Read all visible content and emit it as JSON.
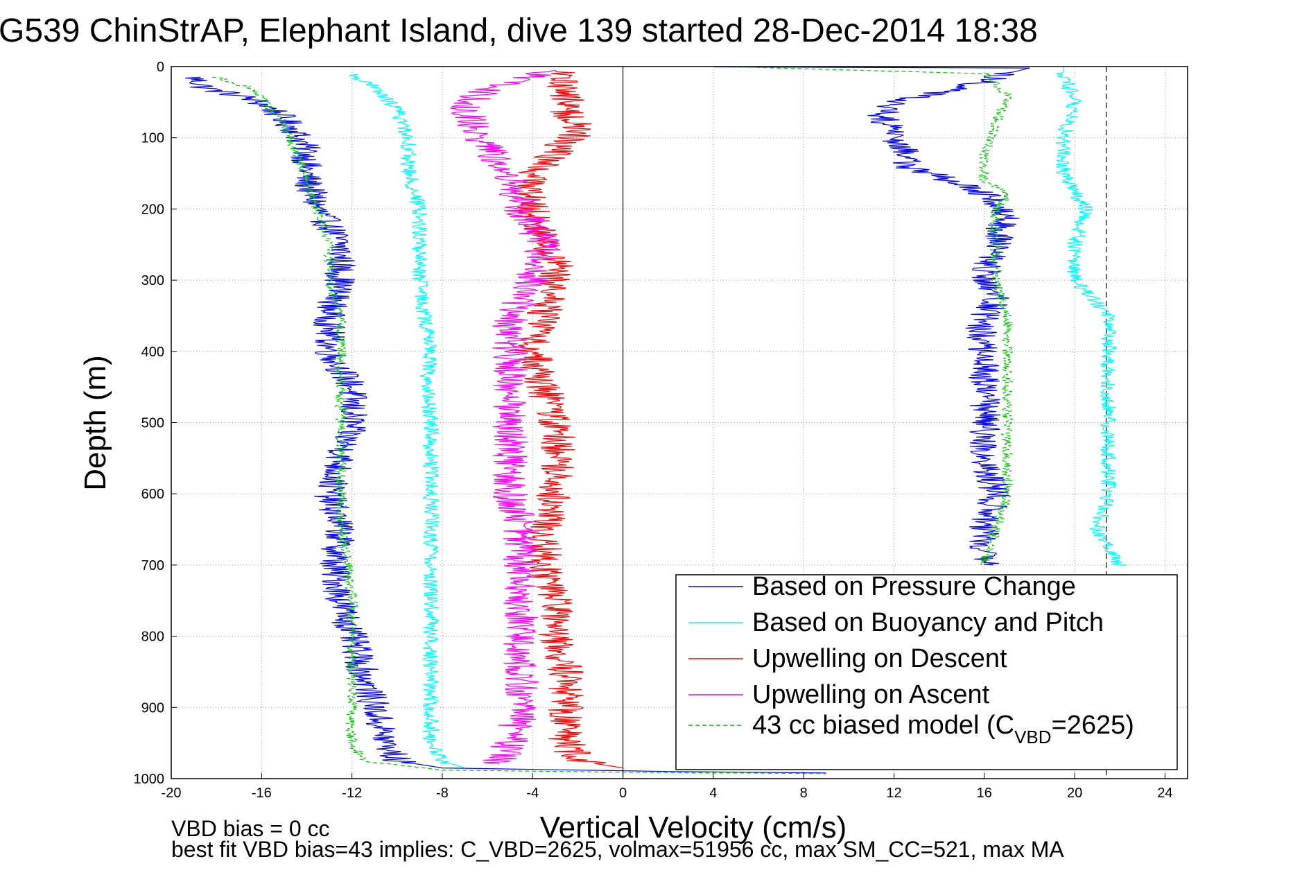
{
  "chart_data": {
    "type": "line",
    "title": "G539 ChinStrAP, Elephant Island, dive 139 started 28-Dec-2014 18:38",
    "xlabel": "Vertical Velocity (cm/s)",
    "ylabel": "Depth (m)",
    "xlim": [
      -20,
      25
    ],
    "ylim": [
      0,
      1000
    ],
    "y_reversed": true,
    "grid": "dotted",
    "xticks": [
      -20,
      -16,
      -12,
      -8,
      -4,
      0,
      4,
      8,
      12,
      16,
      20,
      24
    ],
    "yticks": [
      0,
      100,
      200,
      300,
      400,
      500,
      600,
      700,
      800,
      900,
      1000
    ],
    "reference_lines": [
      {
        "x": 0,
        "style": "solid",
        "color": "#000000"
      },
      {
        "x": 21.4,
        "style": "dashed",
        "color": "#000000"
      }
    ],
    "legend": {
      "placement": "bottom-right",
      "entries": [
        {
          "label": "Based on Pressure Change",
          "color": "#0000ff",
          "dash": "solid"
        },
        {
          "label": "Based on Buoyancy and Pitch",
          "color": "#00ffff",
          "dash": "solid"
        },
        {
          "label": "Upwelling on Descent",
          "color": "#ff0000",
          "dash": "solid"
        },
        {
          "label": "Upwelling on Ascent",
          "color": "#ff00ff",
          "dash": "solid"
        },
        {
          "label_main": "43 cc biased model (C",
          "label_sub": "VBD",
          "label_tail": "=2625)",
          "color": "#00cc00",
          "dash": "dashed"
        }
      ]
    },
    "series": [
      {
        "color": "#0000ff",
        "dash": "solid",
        "noise": 0.7,
        "role": "descent",
        "points": [
          [
            -19.0,
            15
          ],
          [
            -18.5,
            30
          ],
          [
            -16.5,
            45
          ],
          [
            -15.5,
            60
          ],
          [
            -14.5,
            90
          ],
          [
            -14.0,
            120
          ],
          [
            -14.0,
            160
          ],
          [
            -13.5,
            200
          ],
          [
            -12.5,
            250
          ],
          [
            -12.5,
            300
          ],
          [
            -13.0,
            350
          ],
          [
            -13.0,
            400
          ],
          [
            -12.0,
            450
          ],
          [
            -12.0,
            500
          ],
          [
            -12.5,
            550
          ],
          [
            -13.0,
            600
          ],
          [
            -12.5,
            650
          ],
          [
            -12.8,
            700
          ],
          [
            -12.5,
            750
          ],
          [
            -12.0,
            800
          ],
          [
            -11.5,
            850
          ],
          [
            -11.0,
            900
          ],
          [
            -10.5,
            950
          ],
          [
            -10.0,
            975
          ],
          [
            -8.0,
            985
          ],
          [
            2.0,
            990
          ],
          [
            9.0,
            992
          ]
        ]
      },
      {
        "color": "#0000ff",
        "dash": "solid",
        "noise": 0.7,
        "role": "ascent",
        "points": [
          [
            16.0,
            700
          ],
          [
            16.0,
            650
          ],
          [
            16.5,
            600
          ],
          [
            16.0,
            550
          ],
          [
            16.0,
            500
          ],
          [
            16.0,
            450
          ],
          [
            16.0,
            400
          ],
          [
            15.8,
            360
          ],
          [
            16.5,
            330
          ],
          [
            16.0,
            300
          ],
          [
            16.5,
            250
          ],
          [
            17.0,
            200
          ],
          [
            16.0,
            180
          ],
          [
            14.5,
            160
          ],
          [
            12.5,
            140
          ],
          [
            12.5,
            120
          ],
          [
            12.0,
            100
          ],
          [
            11.5,
            70
          ],
          [
            12.0,
            50
          ],
          [
            15.0,
            30
          ],
          [
            17.0,
            10
          ],
          [
            18.0,
            2
          ],
          [
            4.0,
            0.5
          ]
        ]
      },
      {
        "color": "#00ffff",
        "dash": "solid",
        "noise": 0.35,
        "role": "descent",
        "points": [
          [
            -12.0,
            10
          ],
          [
            -11.0,
            30
          ],
          [
            -10.0,
            60
          ],
          [
            -9.5,
            100
          ],
          [
            -9.5,
            150
          ],
          [
            -9.0,
            200
          ],
          [
            -9.0,
            250
          ],
          [
            -9.0,
            300
          ],
          [
            -8.8,
            350
          ],
          [
            -8.5,
            400
          ],
          [
            -8.7,
            450
          ],
          [
            -8.5,
            500
          ],
          [
            -8.5,
            550
          ],
          [
            -8.5,
            600
          ],
          [
            -8.5,
            650
          ],
          [
            -8.5,
            700
          ],
          [
            -8.5,
            750
          ],
          [
            -8.5,
            800
          ],
          [
            -8.5,
            850
          ],
          [
            -8.5,
            900
          ],
          [
            -8.5,
            950
          ],
          [
            -8.0,
            975
          ],
          [
            -7.0,
            985
          ]
        ]
      },
      {
        "color": "#00ffff",
        "dash": "solid",
        "noise": 0.35,
        "role": "ascent",
        "points": [
          [
            22.0,
            700
          ],
          [
            21.0,
            650
          ],
          [
            21.5,
            600
          ],
          [
            21.5,
            550
          ],
          [
            21.5,
            500
          ],
          [
            21.5,
            450
          ],
          [
            21.5,
            400
          ],
          [
            21.5,
            350
          ],
          [
            20.0,
            300
          ],
          [
            20.0,
            250
          ],
          [
            20.5,
            200
          ],
          [
            19.5,
            150
          ],
          [
            19.5,
            100
          ],
          [
            20.0,
            50
          ],
          [
            19.5,
            10
          ],
          [
            19.5,
            0
          ]
        ]
      },
      {
        "color": "#ff0000",
        "dash": "solid",
        "noise": 0.8,
        "role": "descent",
        "points": [
          [
            -3.0,
            5
          ],
          [
            -2.5,
            30
          ],
          [
            -2.5,
            60
          ],
          [
            -2.0,
            90
          ],
          [
            -3.0,
            120
          ],
          [
            -4.0,
            150
          ],
          [
            -4.0,
            180
          ],
          [
            -4.0,
            200
          ],
          [
            -3.5,
            250
          ],
          [
            -3.0,
            280
          ],
          [
            -3.0,
            300
          ],
          [
            -3.5,
            350
          ],
          [
            -4.0,
            400
          ],
          [
            -3.5,
            450
          ],
          [
            -3.0,
            500
          ],
          [
            -2.8,
            550
          ],
          [
            -3.0,
            600
          ],
          [
            -3.5,
            650
          ],
          [
            -3.5,
            700
          ],
          [
            -3.0,
            750
          ],
          [
            -3.0,
            800
          ],
          [
            -2.5,
            850
          ],
          [
            -2.5,
            900
          ],
          [
            -2.5,
            950
          ],
          [
            -2.0,
            975
          ],
          [
            0.0,
            985
          ]
        ]
      },
      {
        "color": "#ff00ff",
        "dash": "solid",
        "noise": 0.8,
        "role": "ascent",
        "points": [
          [
            -5.5,
            980
          ],
          [
            -5.0,
            950
          ],
          [
            -4.5,
            900
          ],
          [
            -4.5,
            850
          ],
          [
            -4.5,
            800
          ],
          [
            -4.5,
            750
          ],
          [
            -4.5,
            700
          ],
          [
            -4.5,
            650
          ],
          [
            -5.0,
            600
          ],
          [
            -5.0,
            550
          ],
          [
            -5.0,
            500
          ],
          [
            -5.0,
            450
          ],
          [
            -5.0,
            400
          ],
          [
            -5.0,
            350
          ],
          [
            -4.0,
            300
          ],
          [
            -3.5,
            250
          ],
          [
            -4.5,
            200
          ],
          [
            -5.0,
            150
          ],
          [
            -6.5,
            100
          ],
          [
            -7.0,
            50
          ],
          [
            -5.0,
            20
          ],
          [
            -3.0,
            5
          ]
        ]
      },
      {
        "color": "#00cc00",
        "dash": "dashed",
        "noise": 0.25,
        "role": "descent",
        "points": [
          [
            -18.0,
            15
          ],
          [
            -16.5,
            30
          ],
          [
            -15.0,
            80
          ],
          [
            -14.5,
            120
          ],
          [
            -14.0,
            160
          ],
          [
            -13.5,
            200
          ],
          [
            -13.0,
            250
          ],
          [
            -13.0,
            300
          ],
          [
            -12.5,
            350
          ],
          [
            -12.5,
            400
          ],
          [
            -12.5,
            450
          ],
          [
            -12.5,
            500
          ],
          [
            -12.5,
            550
          ],
          [
            -12.5,
            600
          ],
          [
            -12.5,
            650
          ],
          [
            -12.2,
            700
          ],
          [
            -12.0,
            750
          ],
          [
            -12.0,
            800
          ],
          [
            -12.0,
            850
          ],
          [
            -12.0,
            900
          ],
          [
            -12.0,
            950
          ],
          [
            -11.5,
            975
          ],
          [
            -8.0,
            988
          ],
          [
            0.0,
            991
          ],
          [
            9.0,
            993
          ]
        ]
      },
      {
        "color": "#00cc00",
        "dash": "dashed",
        "noise": 0.25,
        "role": "ascent",
        "points": [
          [
            16.0,
            700
          ],
          [
            16.5,
            650
          ],
          [
            17.0,
            600
          ],
          [
            17.0,
            550
          ],
          [
            17.0,
            500
          ],
          [
            17.0,
            450
          ],
          [
            17.0,
            400
          ],
          [
            17.0,
            350
          ],
          [
            16.5,
            300
          ],
          [
            16.5,
            250
          ],
          [
            16.5,
            200
          ],
          [
            17.0,
            180
          ],
          [
            16.0,
            160
          ],
          [
            16.0,
            120
          ],
          [
            16.5,
            80
          ],
          [
            17.0,
            40
          ],
          [
            16.0,
            10
          ],
          [
            5.0,
            0.5
          ]
        ]
      }
    ],
    "footer": {
      "line1": "VBD bias = 0 cc",
      "line2": "best fit VBD bias=43 implies: C_VBD=2625, volmax=51956 cc, max SM_CC=521, max MA"
    }
  }
}
